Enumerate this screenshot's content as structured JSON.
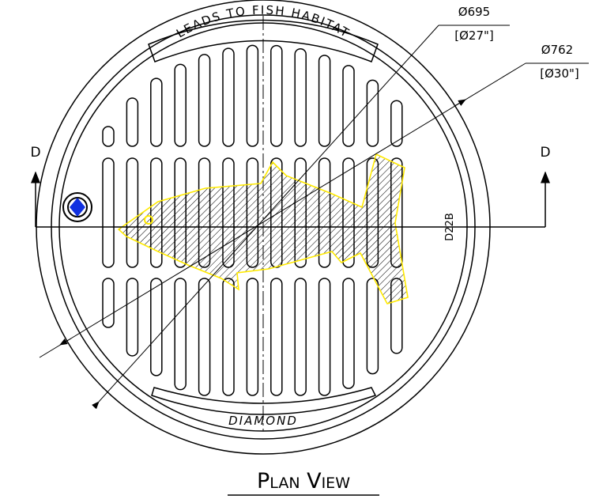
{
  "top_label": "LEADS TO FISH HABITAT",
  "bottom_label": "DIAMOND",
  "dimensions": [
    {
      "metric": "Ø695",
      "imperial": "[Ø27\"]"
    },
    {
      "metric": "Ø762",
      "imperial": "[Ø30\"]"
    }
  ],
  "section_marks": [
    "D",
    "D"
  ],
  "part_code": "D22B",
  "caption": "Plan View"
}
